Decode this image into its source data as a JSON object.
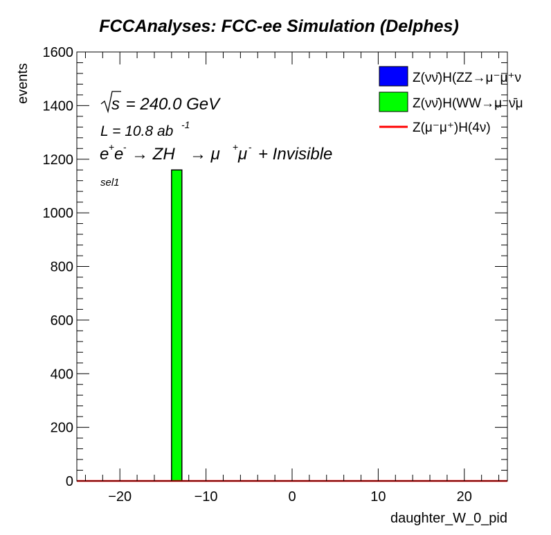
{
  "chart_data": {
    "type": "bar",
    "title": "FCCAnalyses: FCC-ee Simulation (Delphes)",
    "xlabel": "daughter_W_0_pid",
    "ylabel": "events",
    "xlim": [
      -25,
      25
    ],
    "ylim": [
      0,
      1600
    ],
    "x_ticks": [
      "−20",
      "−10",
      "0",
      "10",
      "20"
    ],
    "y_ticks": [
      "0",
      "200",
      "400",
      "600",
      "800",
      "1000",
      "1200",
      "1400",
      "1600"
    ],
    "grid": false,
    "legend_position": "top-right",
    "annotations": {
      "sqrt_s": "s",
      "energy": " = 240.0 GeV",
      "lumi": "L = 10.8 ab",
      "lumi_exp": "-1",
      "process": "ZH → μ⁺μ⁻ + Invisible",
      "process_e": "e",
      "process_ep": "+",
      "process_e2": "e",
      "process_em": "-",
      "process_arrow1": "→ ZH",
      "process_arrow2": "→ μ",
      "process_mup": "+",
      "process_mu2": "μ",
      "process_mum": "-",
      "process_tail": "+ Invisible",
      "selection": "sel1"
    },
    "series": [
      {
        "name": "Z(νν̄)H(ZZ→μ⁻μ⁺ν",
        "color": "#0000ff",
        "style": "fill",
        "bins": []
      },
      {
        "name": "Z(νν̄)H(WW→μ⁻ν̄μ",
        "color": "#00ff00",
        "style": "fill",
        "bins": [
          {
            "x_low": -14,
            "x_high": -12.8,
            "value": 1160
          }
        ]
      },
      {
        "name": "Z(μ⁻μ⁺)H(4ν)",
        "color": "#ff0000",
        "style": "line",
        "bins": []
      }
    ]
  }
}
